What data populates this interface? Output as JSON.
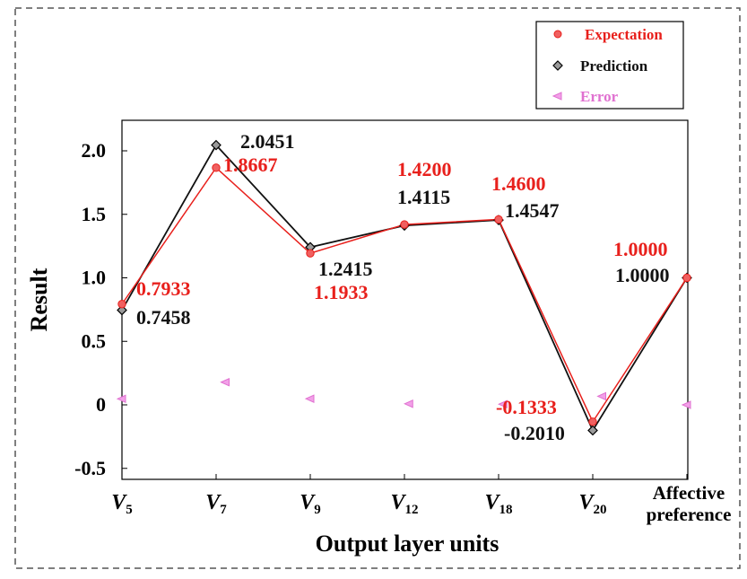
{
  "chart_data": {
    "type": "line",
    "xlabel": "Output layer units",
    "ylabel": "Result",
    "ylim": [
      -0.5,
      2.2
    ],
    "yticks": [
      {
        "value": -0.5,
        "label": "-0.5"
      },
      {
        "value": 0,
        "label": "0"
      },
      {
        "value": 0.5,
        "label": "0.5"
      },
      {
        "value": 1.0,
        "label": "1.0"
      },
      {
        "value": 1.5,
        "label": "1.5"
      },
      {
        "value": 2.0,
        "label": "2.0"
      }
    ],
    "categories": [
      {
        "base": "V",
        "sub": "5",
        "text": ""
      },
      {
        "base": "V",
        "sub": "7",
        "text": ""
      },
      {
        "base": "V",
        "sub": "9",
        "text": ""
      },
      {
        "base": "V",
        "sub": "12",
        "text": ""
      },
      {
        "base": "V",
        "sub": "18",
        "text": ""
      },
      {
        "base": "V",
        "sub": "20",
        "text": ""
      },
      {
        "base": "",
        "sub": "",
        "text": "Affective preference"
      }
    ],
    "x_positions": [
      0,
      1,
      2,
      3,
      4,
      5,
      6
    ],
    "grid": false,
    "legend": "top-right",
    "series": [
      {
        "name": "Expectation",
        "color": "#e8201c",
        "marker": "circle",
        "values": [
          0.7933,
          1.8667,
          1.1933,
          1.42,
          1.46,
          -0.1333,
          1.0
        ],
        "labels": [
          "0.7933",
          "1.8667",
          "1.1933",
          "1.4200",
          "1.4600",
          "-0.1333",
          "1.0000"
        ]
      },
      {
        "name": "Prediction",
        "color": "#111111",
        "marker": "diamond",
        "values": [
          0.7458,
          2.0451,
          1.2415,
          1.4115,
          1.4547,
          -0.201,
          1.0
        ],
        "labels": [
          "0.7458",
          "2.0451",
          "1.2415",
          "1.4115",
          "1.4547",
          "-0.2010",
          "1.0000"
        ]
      },
      {
        "name": "Error",
        "color": "#e070d0",
        "marker": "triangle-left",
        "x_offsets": [
          0.0,
          0.1,
          0.0,
          0.05,
          0.05,
          0.1,
          0.0
        ],
        "values": [
          0.0475,
          0.1784,
          0.0482,
          0.0085,
          0.0053,
          0.0677,
          0.0
        ]
      }
    ]
  }
}
